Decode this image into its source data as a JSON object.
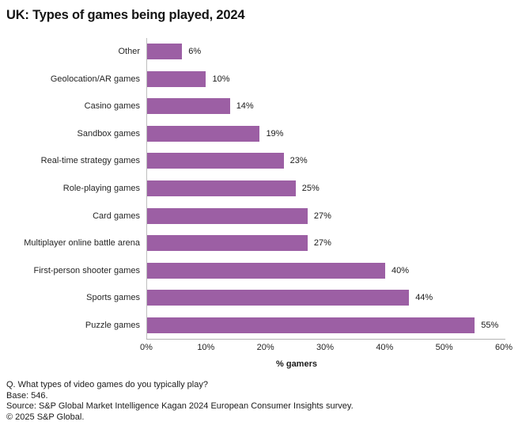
{
  "chart_data": {
    "type": "bar",
    "orientation": "horizontal",
    "title": "UK: Types of games being played, 2024",
    "categories": [
      "Other",
      "Geolocation/AR games",
      "Casino games",
      "Sandbox games",
      "Real-time strategy games",
      "Role-playing games",
      "Card games",
      "Multiplayer online battle arena",
      "First-person shooter games",
      "Sports games",
      "Puzzle games"
    ],
    "values": [
      6,
      10,
      14,
      19,
      23,
      25,
      27,
      27,
      40,
      44,
      55
    ],
    "value_labels": [
      "6%",
      "10%",
      "14%",
      "19%",
      "23%",
      "25%",
      "27%",
      "27%",
      "40%",
      "44%",
      "55%"
    ],
    "xlabel": "% gamers",
    "xlim": [
      0,
      60
    ],
    "x_ticks": [
      "0%",
      "10%",
      "20%",
      "30%",
      "40%",
      "50%",
      "60%"
    ],
    "grid": false,
    "legend": "none",
    "bar_color": "#9c5fa4"
  },
  "footer": {
    "lines": [
      "Q. What types of video games do you typically play?",
      "Base: 546.",
      "Source: S&P Global Market Intelligence Kagan 2024 European Consumer Insights survey.",
      "© 2025 S&P Global."
    ]
  }
}
